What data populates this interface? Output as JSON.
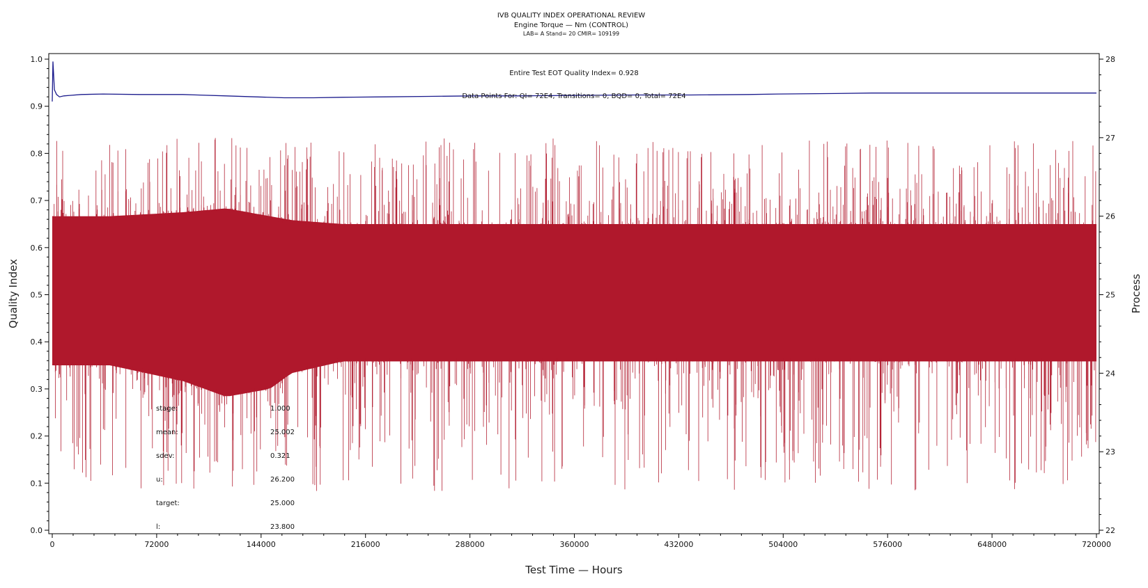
{
  "chart_data": {
    "type": "line",
    "title": "IVB QUALITY INDEX OPERATIONAL REVIEW",
    "subtitle": "Engine Torque — Nm (CONTROL)",
    "subtitle2": "LAB= A Stand= 20 CMIR= 109199",
    "xlabel": "Test Time — Hours",
    "ylabel": "Quality Index",
    "y2label": "Process",
    "xlim": [
      0,
      720000
    ],
    "ylim": [
      0.0,
      1.0
    ],
    "y2lim": [
      22,
      28
    ],
    "x_ticks": [
      "0",
      "72000",
      "144000",
      "216000",
      "288000",
      "360000",
      "432000",
      "504000",
      "576000",
      "648000",
      "720000"
    ],
    "y_ticks": [
      "0.0",
      "0.1",
      "0.2",
      "0.3",
      "0.4",
      "0.5",
      "0.6",
      "0.7",
      "0.8",
      "0.9",
      "1.0"
    ],
    "y2_ticks": [
      "22",
      "23",
      "24",
      "25",
      "26",
      "27",
      "28"
    ],
    "annotations": {
      "quality_index": "Entire Test EOT Quality Index=   0.928",
      "data_points": "Data Points For: QI=  72E4, Transitions=     0, BQD=     0, Total=  72E4"
    },
    "stats": [
      {
        "label": "stage:",
        "value": "1.000"
      },
      {
        "label": "mean:",
        "value": "25.002"
      },
      {
        "label": "sdev:",
        "value": "0.321"
      },
      {
        "label": "u:",
        "value": "26.200"
      },
      {
        "label": "target:",
        "value": "25.000"
      },
      {
        "label": "l:",
        "value": "23.800"
      }
    ],
    "series": [
      {
        "axis": "left",
        "color": "#1a1a8c",
        "x": [
          0,
          500,
          1500,
          3000,
          5000,
          8000,
          12000,
          20000,
          35000,
          60000,
          90000,
          100000,
          120000,
          140000,
          160000,
          180000,
          200000,
          230000,
          260000,
          290000,
          320000,
          360000,
          400000,
          440000,
          480000,
          500000,
          540000,
          565000,
          600000,
          650000,
          720000
        ],
        "y": [
          0.91,
          0.995,
          0.935,
          0.925,
          0.92,
          0.922,
          0.923,
          0.925,
          0.926,
          0.925,
          0.925,
          0.924,
          0.922,
          0.92,
          0.918,
          0.918,
          0.919,
          0.92,
          0.921,
          0.922,
          0.922,
          0.923,
          0.924,
          0.924,
          0.925,
          0.926,
          0.927,
          0.928,
          0.928,
          0.928,
          0.928
        ]
      },
      {
        "axis": "right",
        "color": "#b0182c",
        "render": "band",
        "envelope_x": [
          0,
          40000,
          90000,
          120000,
          150000,
          165000,
          200000,
          300000,
          400000,
          500000,
          600000,
          700000,
          720000
        ],
        "envelope_low": [
          24.1,
          24.1,
          23.9,
          23.7,
          23.8,
          24.0,
          24.15,
          24.15,
          24.15,
          24.15,
          24.15,
          24.15,
          24.15
        ],
        "envelope_high": [
          26.0,
          26.0,
          26.05,
          26.1,
          26.0,
          25.95,
          25.9,
          25.9,
          25.9,
          25.9,
          25.9,
          25.9,
          25.9
        ],
        "spike_max": 27.0,
        "spike_min": 22.5
      }
    ]
  }
}
